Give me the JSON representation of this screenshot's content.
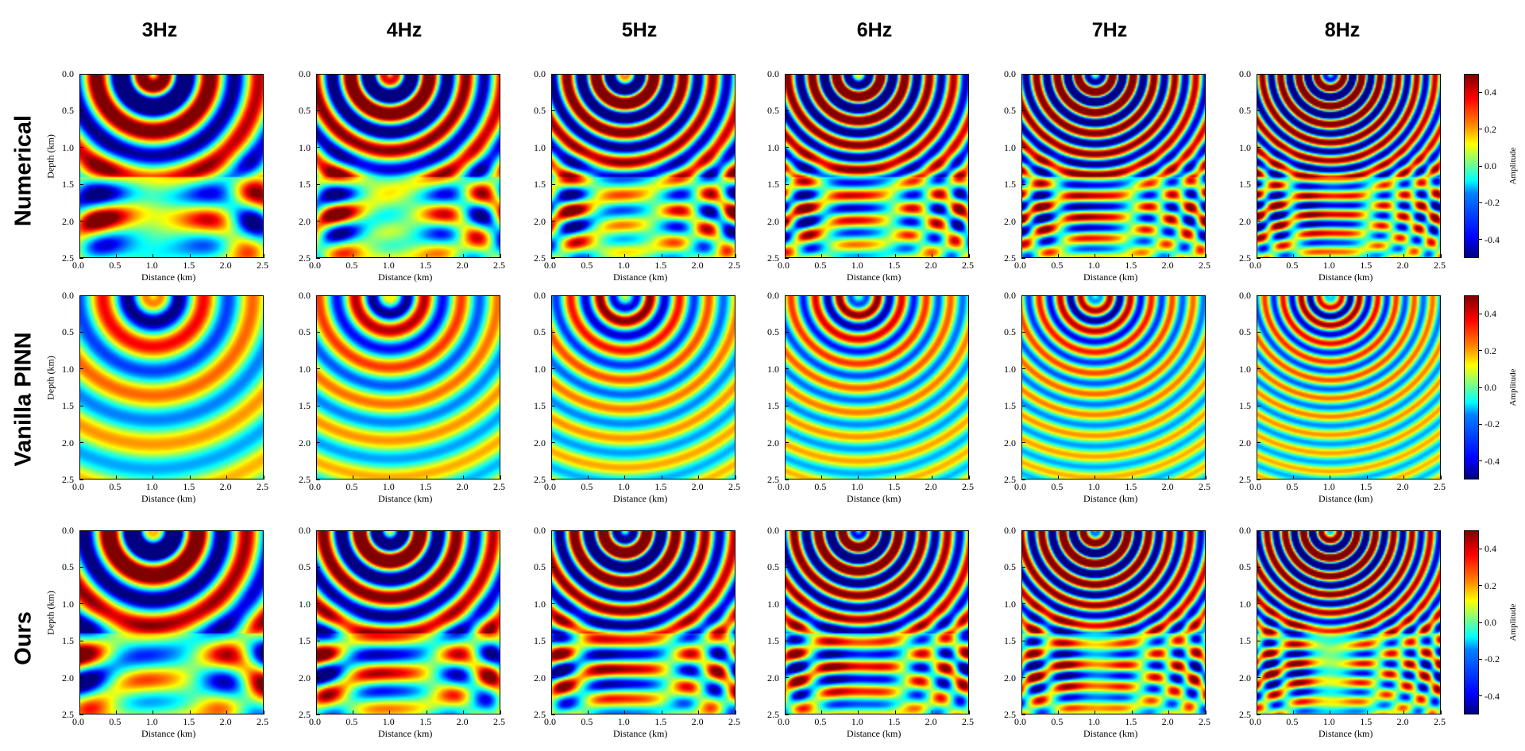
{
  "chart_data": {
    "type": "heatmap",
    "columns": [
      "3Hz",
      "4Hz",
      "5Hz",
      "6Hz",
      "7Hz",
      "8Hz"
    ],
    "frequencies_hz": [
      3,
      4,
      5,
      6,
      7,
      8
    ],
    "rows": [
      "Numerical",
      "Vanilla PINN",
      "Ours"
    ],
    "xlabel": "Distance (km)",
    "ylabel": "Depth (km)",
    "xlim": [
      0.0,
      2.5
    ],
    "ylim": [
      2.5,
      0.0
    ],
    "xticks": [
      "0.0",
      "0.5",
      "1.0",
      "1.5",
      "2.0",
      "2.5"
    ],
    "yticks": [
      "0.0",
      "0.5",
      "1.0",
      "1.5",
      "2.0",
      "2.5"
    ],
    "colorbar": {
      "label": "Amplitude",
      "range": [
        -0.5,
        0.5
      ],
      "ticks": [
        "0.4",
        "0.2",
        "0.0",
        "-0.2",
        "-0.4"
      ],
      "colormap": "jet"
    },
    "source_position_km": [
      1.0,
      0.0
    ],
    "note_rows": [
      {
        "name": "Numerical",
        "amplitude_scale": 1.0,
        "lower_reflections": true
      },
      {
        "name": "Vanilla PINN",
        "amplitude_scale": 0.6,
        "lower_reflections": false
      },
      {
        "name": "Ours",
        "amplitude_scale": 1.0,
        "lower_reflections": true
      }
    ]
  }
}
